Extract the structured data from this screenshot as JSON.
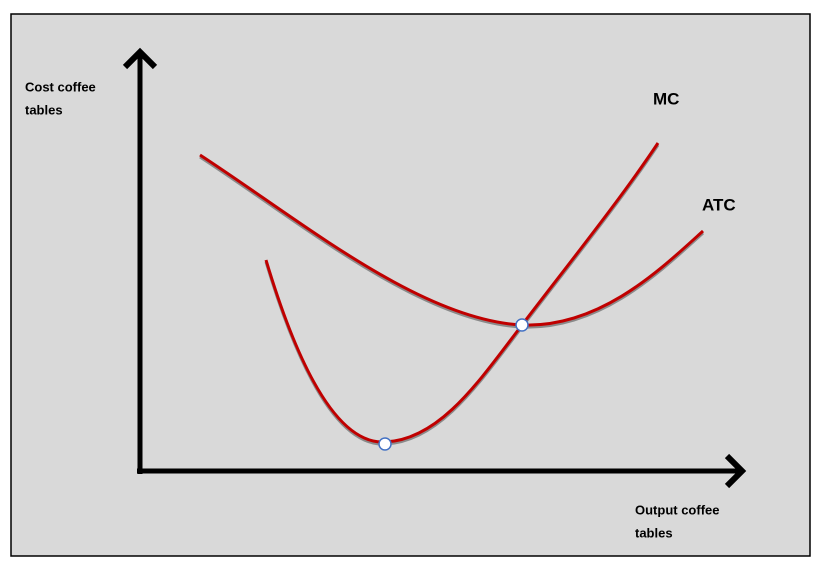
{
  "axes": {
    "y_label": [
      "Cost coffee",
      "tables"
    ],
    "x_label": [
      "Output coffee",
      "tables"
    ]
  },
  "curves": [
    {
      "label": "MC"
    },
    {
      "label": "ATC"
    }
  ]
}
